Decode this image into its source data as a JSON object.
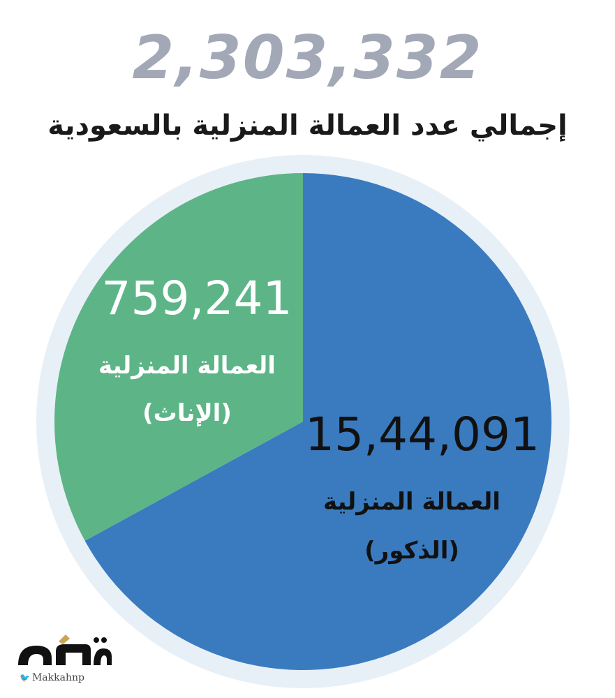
{
  "header": {
    "total": "2,303,332",
    "subtitle": "إجمالي عدد العمالة المنزلية بالسعودية"
  },
  "chart_data": {
    "type": "pie",
    "title": "إجمالي عدد العمالة المنزلية بالسعودية",
    "total_label": "2,303,332",
    "slices": [
      {
        "value_label": "15,44,091",
        "value": 1544091,
        "label_line1": "العمالة المنزلية",
        "label_line2": "(الذكور)",
        "color": "#3a7bbf",
        "text_color": "#111111"
      },
      {
        "value_label": "759,241",
        "value": 759241,
        "label_line1": "العمالة المنزلية",
        "label_line2": "(الإناث)",
        "color": "#5db587",
        "text_color": "#ffffff"
      }
    ],
    "ring_color": "#e8f0f7",
    "start_angle_deg": 0
  },
  "logo": {
    "handle": "Makkahnp",
    "bird_icon": "twitter-bird-icon"
  }
}
